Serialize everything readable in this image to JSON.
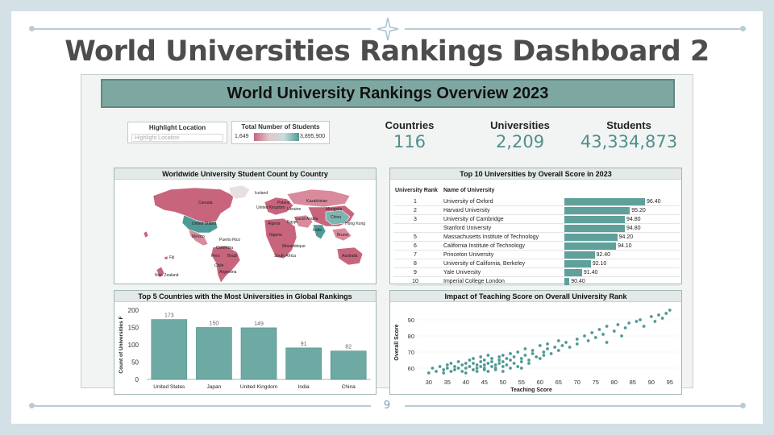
{
  "slide": {
    "title": "World Universities Rankings Dashboard 2",
    "page_number": "9",
    "colors": {
      "background": "#d3e0e6",
      "accent": "#5fa09b",
      "title_text": "#4d4d4d"
    }
  },
  "dashboard": {
    "banner_title": "World University Rankings Overview 2023",
    "highlight_filter": {
      "title": "Highlight Location",
      "placeholder": "Highlight Location"
    },
    "student_legend": {
      "title": "Total Number of Students",
      "min": "1,649",
      "max": "3,895,900"
    },
    "kpis": [
      {
        "label": "Countries",
        "value": "116"
      },
      {
        "label": "Universities",
        "value": "2,209"
      },
      {
        "label": "Students",
        "value": "43,334,873"
      }
    ]
  },
  "map_panel": {
    "title": "Worldwide University Student Count by Country",
    "country_labels": [
      "Canada",
      "United States",
      "Mexico",
      "Puerto Rico",
      "Colombia",
      "Peru",
      "Brazil",
      "Chile",
      "Argentina",
      "Fiji",
      "New Zealand",
      "Iceland",
      "United Kingdom",
      "Poland",
      "Ukraine",
      "Kazakhstan",
      "Algeria",
      "Egypt",
      "Saudi Arabia",
      "Nigeria",
      "Mozambique",
      "South Africa",
      "India",
      "China",
      "Mongolia",
      "Hong Kong",
      "Brunei",
      "Australia"
    ]
  },
  "top10": {
    "title": "Top 10 Universities by Overall Score in 2023",
    "col_rank": "University Rank",
    "col_name": "Name of University",
    "rows": [
      {
        "rank": "1",
        "name": "University of Oxford",
        "score": 96.4,
        "score_label": "96.40"
      },
      {
        "rank": "2",
        "name": "Harvard University",
        "score": 95.2,
        "score_label": "95.20"
      },
      {
        "rank": "3",
        "name": "University of Cambridge",
        "score": 94.8,
        "score_label": "94.80"
      },
      {
        "rank": "",
        "name": "Stanford University",
        "score": 94.8,
        "score_label": "94.80"
      },
      {
        "rank": "5",
        "name": "Massachusetts Institute of Technology",
        "score": 94.2,
        "score_label": "94.20"
      },
      {
        "rank": "6",
        "name": "California Institute of Technology",
        "score": 94.1,
        "score_label": "94.10"
      },
      {
        "rank": "7",
        "name": "Princeton University",
        "score": 92.4,
        "score_label": "92.40"
      },
      {
        "rank": "8",
        "name": "University of California, Berkeley",
        "score": 92.1,
        "score_label": "92.10"
      },
      {
        "rank": "9",
        "name": "Yale University",
        "score": 91.4,
        "score_label": "91.40"
      },
      {
        "rank": "10",
        "name": "Imperial College London",
        "score": 90.4,
        "score_label": "90.40"
      }
    ]
  },
  "chart_data": [
    {
      "type": "bar",
      "title": "Top 5 Countries with the Most Universities in Global Rankings",
      "categories": [
        "United States",
        "Japan",
        "United Kingdom",
        "India",
        "China"
      ],
      "values": [
        173,
        150,
        149,
        91,
        82
      ],
      "value_labels": [
        "173",
        "150",
        "149",
        "91",
        "82"
      ],
      "ylabel": "Count of Universities F",
      "yticks": [
        0,
        50,
        100,
        150,
        200
      ],
      "ylim": [
        0,
        200
      ]
    },
    {
      "type": "scatter",
      "title": "Impact of Teaching Score on Overall University Rank",
      "xlabel": "Teaching Score",
      "ylabel": "Overall Score",
      "xticks": [
        30,
        35,
        40,
        45,
        50,
        55,
        60,
        65,
        70,
        75,
        80,
        85,
        90,
        95
      ],
      "yticks": [
        60,
        70,
        80,
        90
      ],
      "xlim": [
        27,
        97
      ],
      "ylim": [
        55,
        97
      ],
      "points": [
        [
          30,
          57
        ],
        [
          31,
          60
        ],
        [
          32,
          58
        ],
        [
          33,
          61
        ],
        [
          34,
          59
        ],
        [
          34,
          57
        ],
        [
          35,
          62
        ],
        [
          35,
          60
        ],
        [
          36,
          58
        ],
        [
          36,
          63
        ],
        [
          37,
          61
        ],
        [
          37,
          59
        ],
        [
          38,
          64
        ],
        [
          38,
          60
        ],
        [
          39,
          58
        ],
        [
          39,
          62
        ],
        [
          40,
          63
        ],
        [
          40,
          60
        ],
        [
          40,
          57
        ],
        [
          41,
          65
        ],
        [
          41,
          61
        ],
        [
          42,
          59
        ],
        [
          42,
          63
        ],
        [
          42,
          66
        ],
        [
          43,
          60
        ],
        [
          43,
          62
        ],
        [
          43,
          58
        ],
        [
          44,
          64
        ],
        [
          44,
          61
        ],
        [
          44,
          67
        ],
        [
          45,
          59
        ],
        [
          45,
          62
        ],
        [
          45,
          65
        ],
        [
          45,
          60
        ],
        [
          46,
          63
        ],
        [
          46,
          58
        ],
        [
          46,
          68
        ],
        [
          47,
          61
        ],
        [
          47,
          64
        ],
        [
          47,
          66
        ],
        [
          48,
          60
        ],
        [
          48,
          62
        ],
        [
          48,
          59
        ],
        [
          49,
          65
        ],
        [
          49,
          63
        ],
        [
          49,
          67
        ],
        [
          50,
          61
        ],
        [
          50,
          64
        ],
        [
          50,
          68
        ],
        [
          50,
          58
        ],
        [
          51,
          62
        ],
        [
          51,
          66
        ],
        [
          52,
          60
        ],
        [
          52,
          65
        ],
        [
          52,
          69
        ],
        [
          53,
          63
        ],
        [
          53,
          67
        ],
        [
          54,
          61
        ],
        [
          54,
          70
        ],
        [
          55,
          64
        ],
        [
          55,
          66
        ],
        [
          55,
          60
        ],
        [
          56,
          68
        ],
        [
          56,
          72
        ],
        [
          57,
          65
        ],
        [
          57,
          63
        ],
        [
          58,
          69
        ],
        [
          58,
          71
        ],
        [
          59,
          67
        ],
        [
          60,
          66
        ],
        [
          60,
          74
        ],
        [
          61,
          70
        ],
        [
          61,
          68
        ],
        [
          62,
          72
        ],
        [
          62,
          75
        ],
        [
          63,
          69
        ],
        [
          64,
          73
        ],
        [
          65,
          71
        ],
        [
          65,
          77
        ],
        [
          66,
          74
        ],
        [
          67,
          76
        ],
        [
          68,
          73
        ],
        [
          70,
          78
        ],
        [
          70,
          75
        ],
        [
          72,
          80
        ],
        [
          73,
          77
        ],
        [
          74,
          82
        ],
        [
          75,
          79
        ],
        [
          76,
          84
        ],
        [
          77,
          81
        ],
        [
          78,
          86
        ],
        [
          80,
          83
        ],
        [
          81,
          87
        ],
        [
          83,
          85
        ],
        [
          84,
          88
        ],
        [
          86,
          89
        ],
        [
          87,
          90
        ],
        [
          88,
          86
        ],
        [
          90,
          92
        ],
        [
          91,
          89
        ],
        [
          92,
          93
        ],
        [
          93,
          91
        ],
        [
          94,
          94
        ],
        [
          95,
          96
        ],
        [
          82,
          80
        ],
        [
          78,
          76
        ]
      ]
    }
  ]
}
